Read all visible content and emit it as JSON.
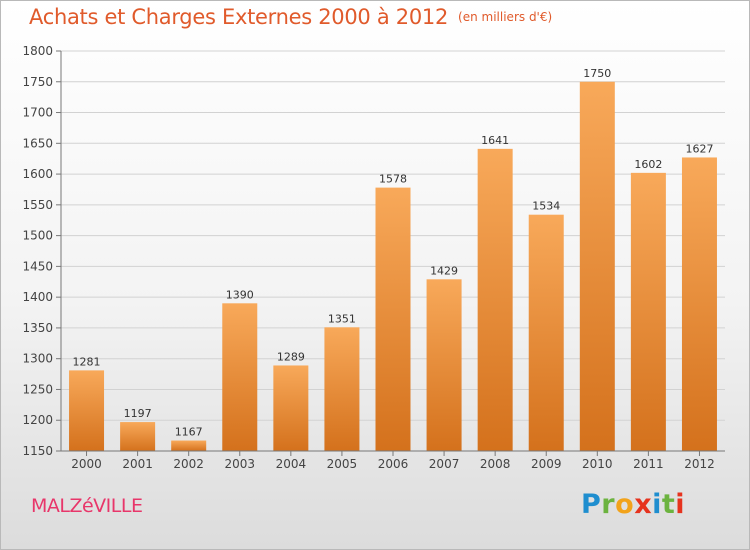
{
  "header": {
    "title": "Achats et Charges Externes 2000 à 2012",
    "unit": "(en milliers d'€)"
  },
  "footer": {
    "city": "MALZéVILLE",
    "logo": [
      "P",
      "r",
      "o",
      "x",
      "i",
      "t",
      "i"
    ]
  },
  "colors": {
    "title": "#e05a2b",
    "city": "#e8366a",
    "bar_top": "#f8a95a",
    "bar_bottom": "#d4711c",
    "logo": [
      "#1f8ecf",
      "#6cb33f",
      "#f2a31b",
      "#e6331e",
      "#1f8ecf",
      "#6cb33f",
      "#e6331e"
    ]
  },
  "chart_data": {
    "type": "bar",
    "title": "Achats et Charges Externes 2000 à 2012",
    "ylabel": "",
    "xlabel": "",
    "categories": [
      "2000",
      "2001",
      "2002",
      "2003",
      "2004",
      "2005",
      "2006",
      "2007",
      "2008",
      "2009",
      "2010",
      "2011",
      "2012"
    ],
    "values": [
      1281,
      1197,
      1167,
      1390,
      1289,
      1351,
      1578,
      1429,
      1641,
      1534,
      1750,
      1602,
      1627
    ],
    "ylim": [
      1150,
      1800
    ],
    "yticks": [
      1150,
      1200,
      1250,
      1300,
      1350,
      1400,
      1450,
      1500,
      1550,
      1600,
      1650,
      1700,
      1750,
      1800
    ],
    "grid": true,
    "data_labels": true
  }
}
